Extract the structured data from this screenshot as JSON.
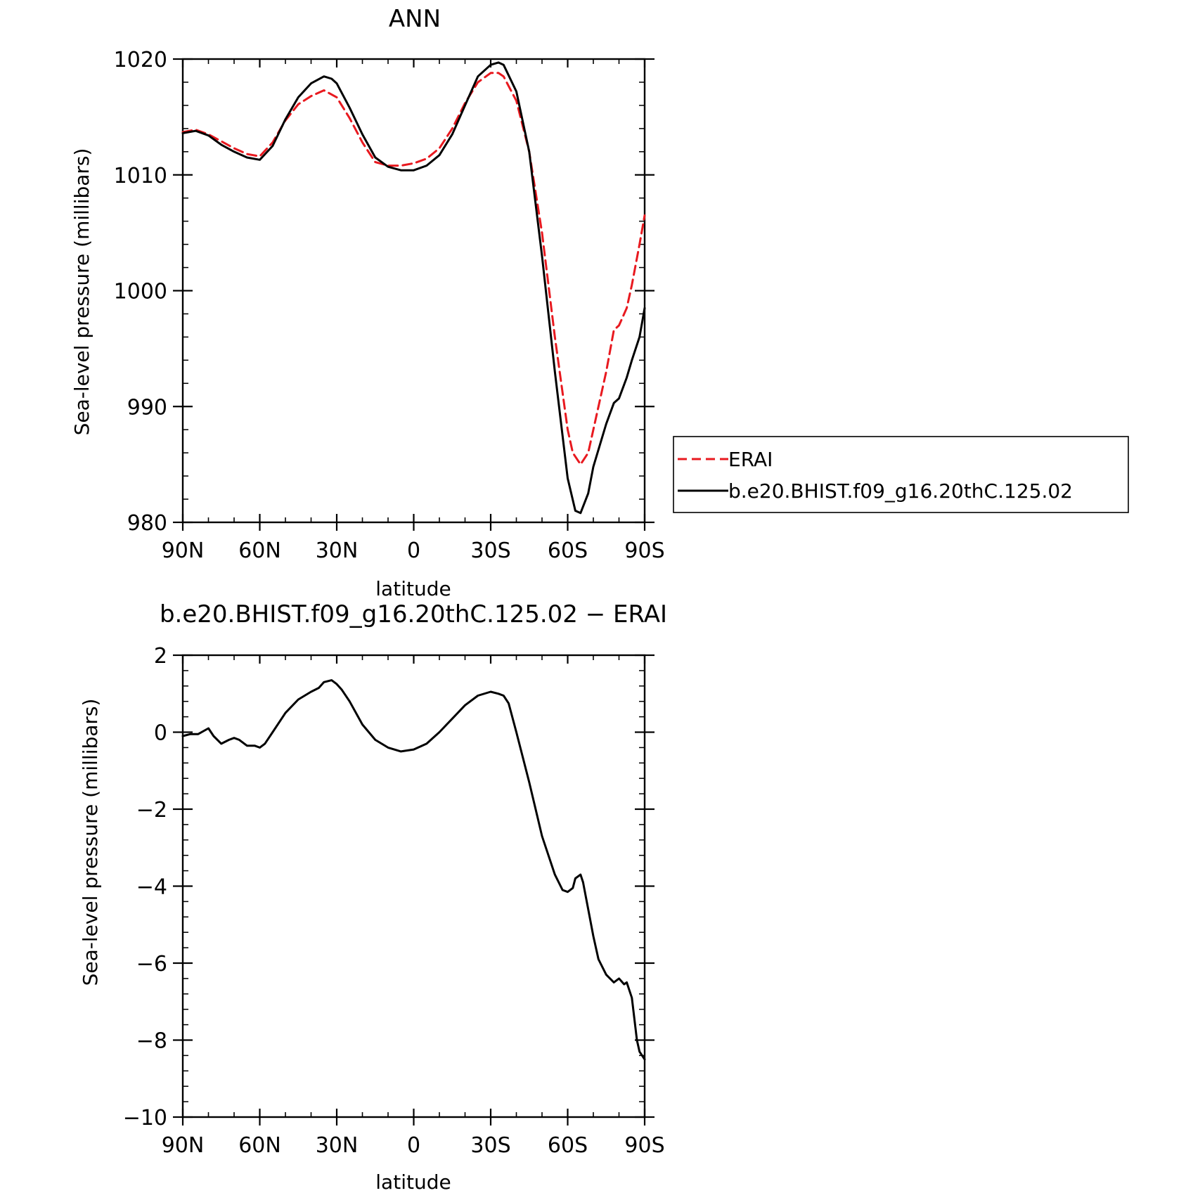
{
  "chart_data": [
    {
      "type": "line",
      "title": "ANN",
      "xlabel": "latitude",
      "ylabel": "Sea-level pressure (millibars)",
      "xlim": [
        90,
        -90
      ],
      "ylim": [
        980,
        1020
      ],
      "x_ticks": [
        90,
        60,
        30,
        0,
        -30,
        -60,
        -90
      ],
      "x_tick_labels": [
        "90N",
        "60N",
        "30N",
        "0",
        "30S",
        "60S",
        "90S"
      ],
      "y_ticks": [
        980,
        990,
        1000,
        1010,
        1020
      ],
      "y_tick_labels": [
        "980",
        "990",
        "1000",
        "1010",
        "1020"
      ],
      "grid": false,
      "legend": {
        "placement": "right"
      },
      "series": [
        {
          "name": "ERAI",
          "color": "#e8191f",
          "dash": "dashed",
          "x": [
            90,
            85,
            80,
            75,
            70,
            65,
            60,
            55,
            50,
            45,
            40,
            35,
            30,
            25,
            20,
            15,
            10,
            5,
            0,
            -5,
            -10,
            -15,
            -20,
            -25,
            -30,
            -33,
            -35,
            -40,
            -45,
            -50,
            -55,
            -60,
            -62,
            -65,
            -68,
            -70,
            -75,
            -78,
            -80,
            -83,
            -85,
            -88,
            -90
          ],
          "y": [
            1013.7,
            1013.9,
            1013.5,
            1012.9,
            1012.3,
            1011.8,
            1011.6,
            1012.8,
            1014.7,
            1016.1,
            1016.8,
            1017.3,
            1016.7,
            1014.9,
            1012.8,
            1011.1,
            1010.8,
            1010.8,
            1011.0,
            1011.4,
            1012.3,
            1014.0,
            1016.2,
            1018.0,
            1018.8,
            1018.8,
            1018.5,
            1016.4,
            1012.0,
            1005.0,
            996.0,
            988.0,
            986.0,
            985.0,
            986.0,
            988.0,
            993.0,
            996.6,
            997.0,
            998.5,
            1000.5,
            1004.0,
            1006.5
          ]
        },
        {
          "name": "b.e20.BHIST.f09_g16.20thC.125.02",
          "color": "#000000",
          "dash": "solid",
          "x": [
            90,
            85,
            80,
            75,
            70,
            65,
            60,
            55,
            50,
            45,
            40,
            35,
            32,
            30,
            25,
            20,
            15,
            10,
            5,
            0,
            -5,
            -10,
            -15,
            -20,
            -25,
            -30,
            -33,
            -35,
            -40,
            -45,
            -50,
            -55,
            -60,
            -63,
            -65,
            -68,
            -70,
            -75,
            -78,
            -80,
            -83,
            -85,
            -88,
            -90
          ],
          "y": [
            1013.6,
            1013.8,
            1013.4,
            1012.6,
            1012.0,
            1011.5,
            1011.3,
            1012.5,
            1014.8,
            1016.7,
            1017.9,
            1018.5,
            1018.3,
            1017.9,
            1015.8,
            1013.5,
            1011.5,
            1010.7,
            1010.4,
            1010.4,
            1010.8,
            1011.7,
            1013.5,
            1016.0,
            1018.5,
            1019.5,
            1019.7,
            1019.5,
            1017.2,
            1012.0,
            1003.0,
            993.0,
            983.8,
            981.0,
            980.8,
            982.5,
            984.8,
            988.5,
            990.3,
            990.7,
            992.5,
            994.0,
            996.0,
            998.5
          ]
        }
      ]
    },
    {
      "type": "line",
      "title": "b.e20.BHIST.f09_g16.20thC.125.02 − ERAI",
      "xlabel": "latitude",
      "ylabel": "Sea-level pressure (millibars)",
      "xlim": [
        90,
        -90
      ],
      "ylim": [
        -10,
        2
      ],
      "x_ticks": [
        90,
        60,
        30,
        0,
        -30,
        -60,
        -90
      ],
      "x_tick_labels": [
        "90N",
        "60N",
        "30N",
        "0",
        "30S",
        "60S",
        "90S"
      ],
      "y_ticks": [
        -10,
        -8,
        -6,
        -4,
        -2,
        0,
        2
      ],
      "y_tick_labels": [
        "−10",
        "−8",
        "−6",
        "−4",
        "−2",
        "0",
        "2"
      ],
      "grid": false,
      "series": [
        {
          "color": "#000000",
          "dash": "solid",
          "x": [
            90,
            87,
            84,
            80,
            78,
            75,
            72,
            70,
            68,
            65,
            62,
            60,
            58,
            55,
            50,
            45,
            40,
            37,
            35,
            32,
            30,
            28,
            25,
            20,
            15,
            10,
            5,
            0,
            -5,
            -10,
            -15,
            -20,
            -25,
            -30,
            -33,
            -35,
            -37,
            -40,
            -45,
            -50,
            -55,
            -58,
            -60,
            -62,
            -63,
            -65,
            -66,
            -68,
            -70,
            -72,
            -75,
            -78,
            -80,
            -82,
            -83,
            -85,
            -87,
            -88,
            -90
          ],
          "y": [
            -0.1,
            -0.05,
            -0.05,
            0.1,
            -0.1,
            -0.3,
            -0.2,
            -0.15,
            -0.2,
            -0.35,
            -0.35,
            -0.4,
            -0.3,
            0.0,
            0.5,
            0.85,
            1.05,
            1.15,
            1.3,
            1.35,
            1.25,
            1.1,
            0.8,
            0.2,
            -0.2,
            -0.4,
            -0.5,
            -0.45,
            -0.3,
            0.0,
            0.35,
            0.7,
            0.95,
            1.05,
            1.0,
            0.95,
            0.75,
            0.0,
            -1.3,
            -2.7,
            -3.7,
            -4.1,
            -4.15,
            -4.05,
            -3.8,
            -3.7,
            -3.9,
            -4.6,
            -5.3,
            -5.9,
            -6.3,
            -6.5,
            -6.4,
            -6.55,
            -6.5,
            -6.9,
            -8.0,
            -8.3,
            -8.5
          ]
        }
      ]
    }
  ]
}
